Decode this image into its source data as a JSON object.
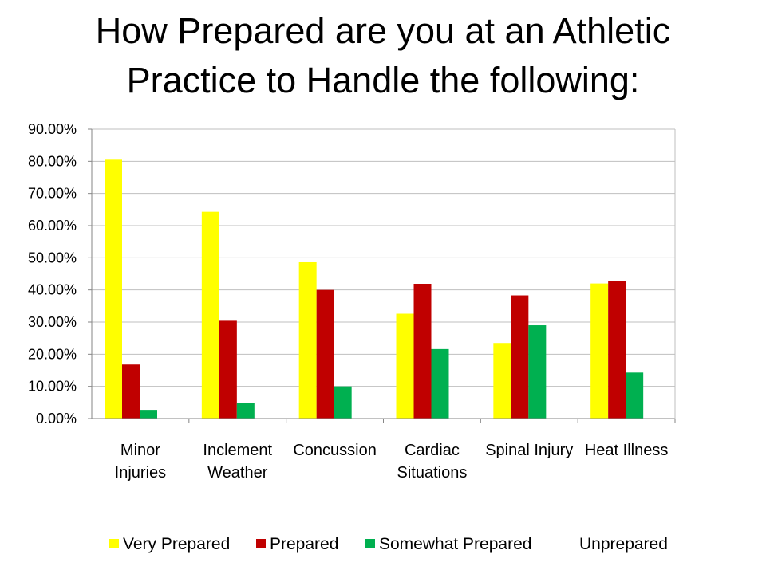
{
  "slide": {
    "title_line1": "How Prepared are you at an Athletic",
    "title_line2": "Practice to Handle the following:"
  },
  "chart_data": {
    "type": "bar",
    "categories": [
      [
        "Minor",
        "Injuries"
      ],
      [
        "Inclement",
        "Weather"
      ],
      [
        "Concussion"
      ],
      [
        "Cardiac",
        "Situations"
      ],
      [
        "Spinal Injury"
      ],
      [
        "Heat Illness"
      ]
    ],
    "series": [
      {
        "name": "Very Prepared",
        "color": "#ffff00",
        "values": [
          80.5,
          64.3,
          48.6,
          32.6,
          23.5,
          42.0
        ]
      },
      {
        "name": "Prepared",
        "color": "#c00000",
        "values": [
          16.8,
          30.4,
          40.0,
          41.9,
          38.3,
          42.8
        ]
      },
      {
        "name": "Somewhat Prepared",
        "color": "#00b050",
        "values": [
          2.7,
          4.9,
          10.0,
          21.6,
          29.0,
          14.3
        ]
      },
      {
        "name": "Unprepared",
        "color": "#4f81bd",
        "values": [
          0,
          0,
          0,
          0,
          0,
          0
        ]
      }
    ],
    "yticks": [
      "0.00%",
      "10.00%",
      "20.00%",
      "30.00%",
      "40.00%",
      "50.00%",
      "60.00%",
      "70.00%",
      "80.00%",
      "90.00%"
    ],
    "ylim": [
      0,
      90
    ],
    "legend_position": "bottom",
    "grid": true
  }
}
